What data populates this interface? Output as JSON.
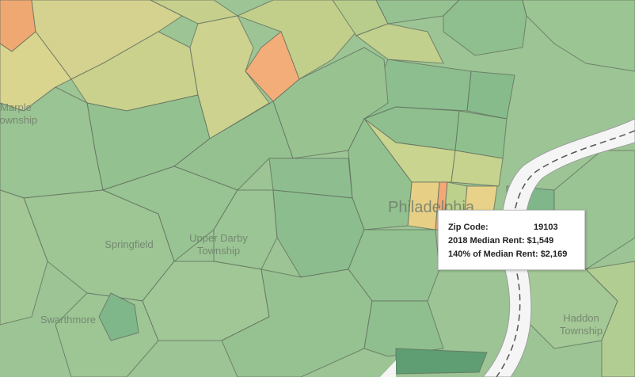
{
  "map": {
    "place_labels": [
      {
        "lines": [
          "Marple",
          "Township"
        ]
      },
      {
        "lines": [
          "Springfield"
        ]
      },
      {
        "lines": [
          "Upper Darby",
          "Township"
        ]
      },
      {
        "lines": [
          "Swarthmore"
        ]
      },
      {
        "lines": [
          "Philadelphia"
        ]
      },
      {
        "lines": [
          "Haddon",
          "Township"
        ]
      }
    ]
  },
  "tooltip": {
    "rows": [
      {
        "label": "Zip Code:",
        "value": "19103"
      },
      {
        "label": "2018 Median Rent:",
        "value": "$1,549"
      },
      {
        "label": "140% of Median Rent:",
        "value": "$2,169"
      }
    ]
  }
}
